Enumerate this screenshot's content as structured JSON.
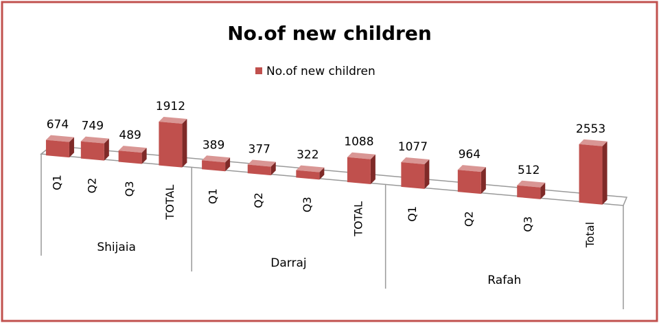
{
  "chart_data": {
    "type": "bar3d",
    "title": "No.of new children",
    "groups": [
      {
        "name": "Shijaia",
        "categories": [
          "Q1",
          "Q2",
          "Q3",
          "TOTAL"
        ]
      },
      {
        "name": "Darraj",
        "categories": [
          "Q1",
          "Q2",
          "Q3",
          "TOTAL"
        ]
      },
      {
        "name": "Rafah",
        "categories": [
          "Q1",
          "Q2",
          "Q3",
          "Total"
        ]
      }
    ],
    "series": [
      {
        "name": "No.of new children",
        "color": "#c0504d",
        "values": [
          674,
          749,
          489,
          1912,
          389,
          377,
          322,
          1088,
          1077,
          964,
          512,
          2553
        ]
      }
    ],
    "legend": "top"
  }
}
